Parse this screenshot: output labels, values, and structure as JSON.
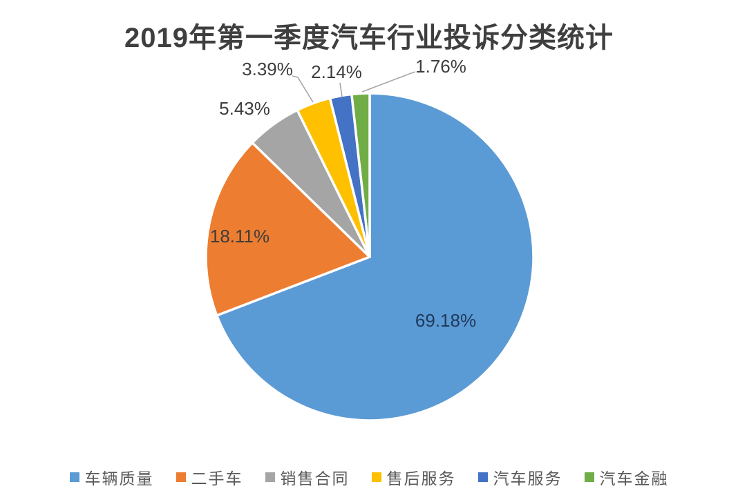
{
  "title": "2019年第一季度汽车行业投诉分类统计",
  "chart_data": {
    "type": "pie",
    "title": "2019年第一季度汽车行业投诉分类统计",
    "start_angle_deg": 0,
    "direction": "clockwise",
    "legend_position": "bottom",
    "gap_color": "#ffffff",
    "leader_line_color": "#a6a6a6",
    "slices": [
      {
        "key": "vehicle-quality",
        "label": "车辆质量",
        "value": 69.18,
        "display": "69.18%",
        "color": "#5B9BD5",
        "label_placement": "inside"
      },
      {
        "key": "used-car",
        "label": "二手车",
        "value": 18.11,
        "display": "18.11%",
        "color": "#ED7D31",
        "label_placement": "inside"
      },
      {
        "key": "sales-contract",
        "label": "销售合同",
        "value": 5.43,
        "display": "5.43%",
        "color": "#A5A5A5",
        "label_placement": "outside"
      },
      {
        "key": "after-sales-service",
        "label": "售后服务",
        "value": 3.39,
        "display": "3.39%",
        "color": "#FFC000",
        "label_placement": "outside-leader"
      },
      {
        "key": "auto-service",
        "label": "汽车服务",
        "value": 2.14,
        "display": "2.14%",
        "color": "#4472C4",
        "label_placement": "outside-leader"
      },
      {
        "key": "auto-finance",
        "label": "汽车金融",
        "value": 1.76,
        "display": "1.76%",
        "color": "#70AD47",
        "label_placement": "outside-leader"
      }
    ]
  }
}
